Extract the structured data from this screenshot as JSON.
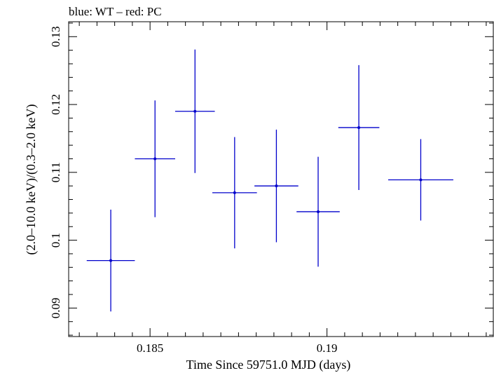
{
  "chart_data": {
    "type": "scatter",
    "title": "blue: WT – red: PC",
    "xlabel": "Time Since 59751.0 MJD (days)",
    "ylabel": "(2.0–10.0 keV)/(0.3–2.0 keV)",
    "xlim": [
      0.1827,
      0.1947
    ],
    "ylim": [
      0.0858,
      0.1322
    ],
    "x_ticks": [
      0.185,
      0.19
    ],
    "x_tick_labels": [
      "0.185",
      "0.19"
    ],
    "y_ticks": [
      0.09,
      0.1,
      0.11,
      0.12,
      0.13
    ],
    "y_tick_labels": [
      "0.09",
      "0.1",
      "0.11",
      "0.12",
      "0.13"
    ],
    "grid": false,
    "series": [
      {
        "color": "#0000cc",
        "points": [
          {
            "x": 0.18389,
            "xerr": 0.00068,
            "y": 0.097,
            "yerr": 0.0075
          },
          {
            "x": 0.18514,
            "xerr": 0.00057,
            "y": 0.112,
            "yerr": 0.0086
          },
          {
            "x": 0.18627,
            "xerr": 0.00056,
            "y": 0.119,
            "yerr": 0.0091
          },
          {
            "x": 0.18739,
            "xerr": 0.00063,
            "y": 0.107,
            "yerr": 0.0082
          },
          {
            "x": 0.18857,
            "xerr": 0.00062,
            "y": 0.108,
            "yerr": 0.0083
          },
          {
            "x": 0.18975,
            "xerr": 0.00061,
            "y": 0.1042,
            "yerr": 0.0081
          },
          {
            "x": 0.1909,
            "xerr": 0.00058,
            "y": 0.1166,
            "yerr": 0.0092
          },
          {
            "x": 0.19265,
            "xerr": 0.00092,
            "y": 0.1089,
            "yerr": 0.006
          }
        ]
      }
    ]
  }
}
